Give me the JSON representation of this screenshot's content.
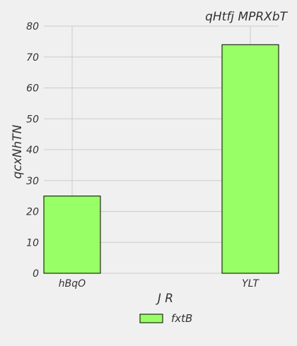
{
  "chart_data": {
    "type": "bar",
    "title": "qHtfj MPRXbT",
    "xlabel": "J R",
    "ylabel": "qcxNhTN",
    "categories": [
      "hBqO",
      "YLT"
    ],
    "series": [
      {
        "name": "fxtB",
        "values": [
          25,
          74
        ],
        "color": "#99ff66"
      }
    ],
    "ylim": [
      0,
      80
    ],
    "yticks": [
      0,
      10,
      20,
      30,
      40,
      50,
      60,
      70,
      80
    ],
    "grid": true,
    "legend_position": "bottom-center"
  },
  "colors": {
    "background": "#f0f0f0",
    "grid": "#cbcbcb",
    "bar_edge": "#000000"
  }
}
